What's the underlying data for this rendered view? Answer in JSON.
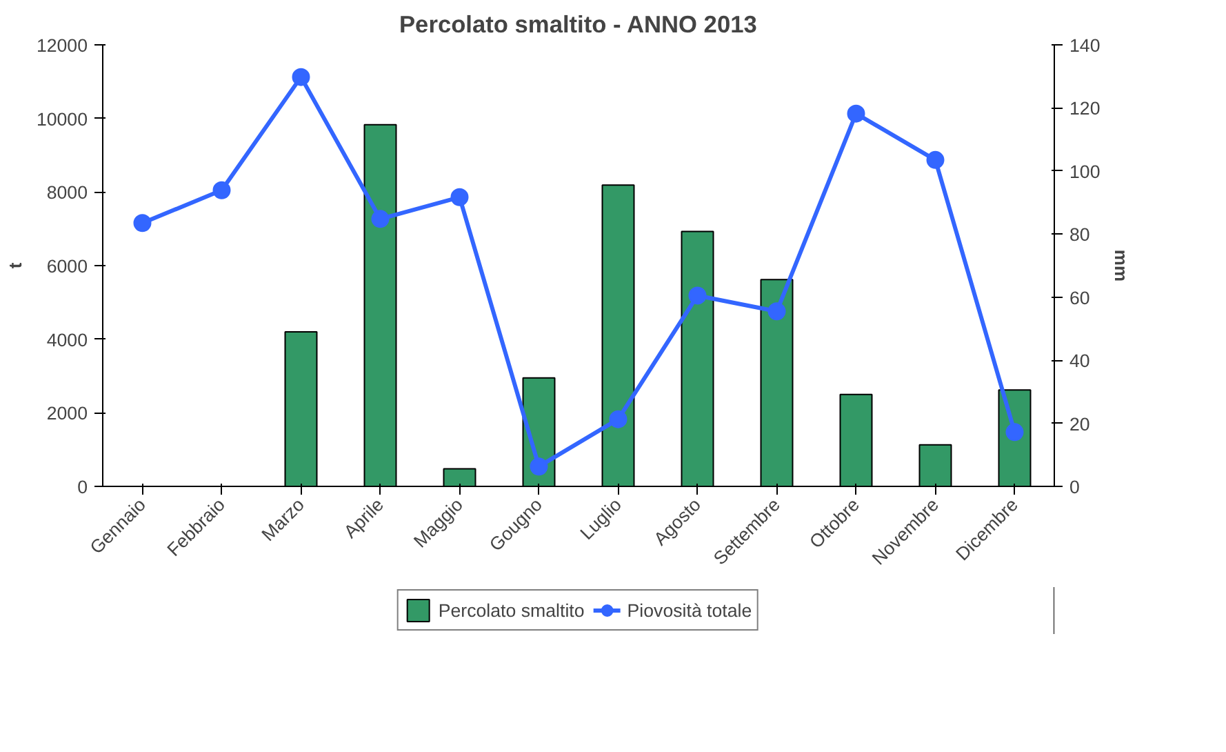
{
  "chart_data": {
    "type": "bar",
    "title": "Percolato smaltito - ANNO 2013",
    "ylabel": "t",
    "y2label": "mm",
    "categories": [
      "Gennaio",
      "Febbraio",
      "Marzo",
      "Aprile",
      "Maggio",
      "Gougno",
      "Luglio",
      "Agosto",
      "Settembre",
      "Ottobre",
      "Novembre",
      "Dicembre"
    ],
    "series": [
      {
        "name": "Percolato smaltito",
        "type": "bar",
        "color": "#339966",
        "values": [
          null,
          null,
          4200,
          9830,
          480,
          2950,
          8190,
          6930,
          5620,
          2500,
          1130,
          2620
        ]
      },
      {
        "name": "Piovosità totale",
        "type": "line",
        "axis": "y2",
        "color": "#3366ff",
        "marker": "circle",
        "values": [
          83.5,
          93.9,
          129.8,
          84.8,
          91.7,
          6.3,
          21.3,
          60.5,
          55.5,
          118.2,
          103.5,
          17.2
        ]
      }
    ],
    "ylim": [
      0,
      12000
    ],
    "yticks": [
      0,
      2000,
      4000,
      6000,
      8000,
      10000,
      12000
    ],
    "y2lim": [
      0,
      140
    ],
    "y2ticks": [
      0,
      20,
      40,
      60,
      80,
      100,
      120,
      140
    ],
    "grid": false,
    "legend": "bottom"
  }
}
